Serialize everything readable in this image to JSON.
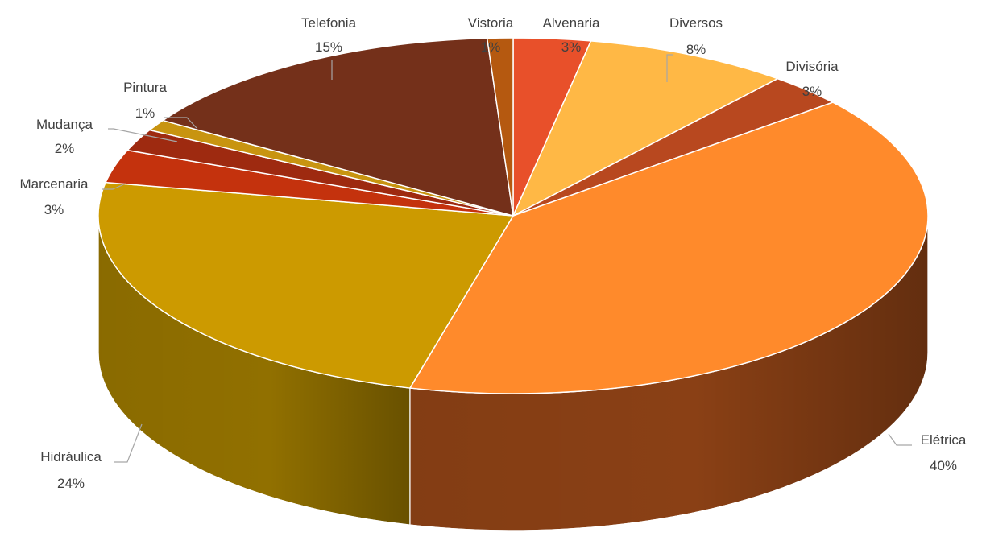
{
  "chart_data": {
    "type": "pie",
    "title": "",
    "three_d": true,
    "categories": [
      "Alvenaria",
      "Diversos",
      "Divisória",
      "Elétrica",
      "Hidráulica",
      "Marcenaria",
      "Mudança",
      "Pintura",
      "Telefonia",
      "Vistoria"
    ],
    "values": [
      3,
      8,
      3,
      40,
      24,
      3,
      2,
      1,
      15,
      1
    ],
    "value_labels": [
      "3%",
      "8%",
      "3%",
      "40%",
      "24%",
      "3%",
      "2%",
      "1%",
      "15%",
      "1%"
    ],
    "colors": [
      "#e8502a",
      "#ffb845",
      "#b8481f",
      "#ff8a2b",
      "#cc9a00",
      "#c4320d",
      "#9e2a10",
      "#c89410",
      "#74301a",
      "#b55910"
    ],
    "side_colors": [
      "#9a3218",
      "#b37a22",
      "#7a2c12",
      "#8a4015",
      "#917000",
      "#85200a",
      "#6a1c08",
      "#8a6608",
      "#4c1e10",
      "#7a3a08"
    ],
    "legend": "none"
  }
}
